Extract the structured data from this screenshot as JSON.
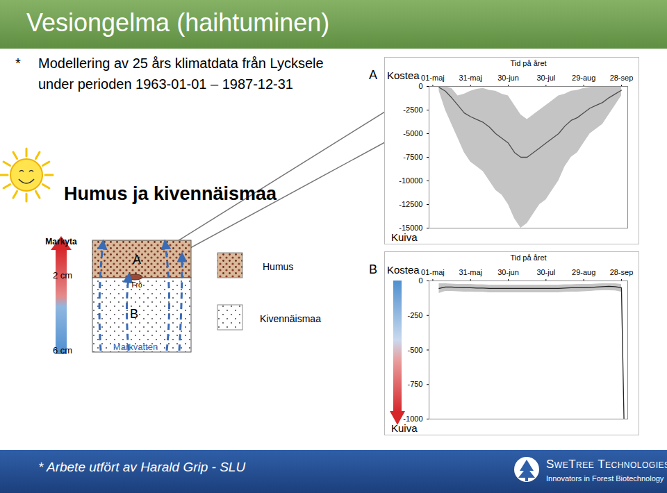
{
  "header": {
    "title": "Vesiongelma (haihtuminen)"
  },
  "bullet": {
    "marker": "*",
    "lines": [
      "Modellering av 25 års klimatdata från Lycksele",
      "under perioden 1963-01-01 – 1987-12-31"
    ]
  },
  "heading": "Humus ja kivennäismaa",
  "diagram": {
    "surface_label": "Markyta",
    "depths": [
      "2 cm",
      "6 cm"
    ],
    "layer_labels": [
      "A",
      "B"
    ],
    "seed_label": "Frö",
    "water_label": "Markvatten",
    "legend": [
      "Humus",
      "Kivennäismaa"
    ]
  },
  "chart_data": [
    {
      "type": "area",
      "panel": "A",
      "x_label": "Tid på året",
      "top_label": "Kostea",
      "bottom_label": "Kuiva",
      "x": [
        5,
        10,
        15,
        20,
        25,
        30,
        35,
        40,
        45,
        50,
        55,
        60,
        65,
        70,
        75,
        80,
        85,
        90,
        95,
        100,
        105,
        110,
        115,
        120,
        125,
        130,
        135,
        140,
        145,
        150
      ],
      "series": [
        {
          "type": "area",
          "color": "#c4c4c4",
          "low": [
            -500,
            -2500,
            -4000,
            -5500,
            -7000,
            -8000,
            -8500,
            -9000,
            -10000,
            -11000,
            -11500,
            -12500,
            -14000,
            -15000,
            -14500,
            -13500,
            -12500,
            -12000,
            -11000,
            -10000,
            -8500,
            -7500,
            -7000,
            -6000,
            -5000,
            -4500,
            -4000,
            -3000,
            -2000,
            -1000
          ],
          "high": [
            0,
            0,
            -200,
            -1000,
            -800,
            -500,
            -300,
            -200,
            -400,
            -500,
            -800,
            -1000,
            -2000,
            -3000,
            -3500,
            -3000,
            -2500,
            -2000,
            -1500,
            -1000,
            -800,
            -500,
            -400,
            -200,
            -100,
            0,
            0,
            0,
            0,
            0
          ]
        },
        {
          "type": "line",
          "color": "#4d4d4d",
          "values": [
            -100,
            -500,
            -1200,
            -2000,
            -2800,
            -3200,
            -3500,
            -3800,
            -4300,
            -5000,
            -5500,
            -6000,
            -7000,
            -7500,
            -7500,
            -7000,
            -6500,
            -6000,
            -5500,
            -5000,
            -4200,
            -3600,
            -3300,
            -2800,
            -2300,
            -2000,
            -1700,
            -1200,
            -800,
            -400
          ]
        }
      ],
      "xlim": [
        -3,
        155
      ],
      "xticks": [
        {
          "value": 0,
          "label": "01-maj"
        },
        {
          "value": 30,
          "label": "31-maj"
        },
        {
          "value": 60,
          "label": "30-jun"
        },
        {
          "value": 90,
          "label": "30-jul"
        },
        {
          "value": 120,
          "label": "29-aug"
        },
        {
          "value": 150,
          "label": "28-sep"
        }
      ],
      "ylim": [
        -15000,
        0
      ],
      "yticks": [
        0,
        -2500,
        -5000,
        -7500,
        -10000,
        -12500,
        -15000
      ],
      "grid": false
    },
    {
      "type": "area",
      "panel": "B",
      "x_label": "Tid på året",
      "top_label": "Kostea",
      "bottom_label": "Kuiva",
      "x": [
        5,
        10,
        15,
        20,
        25,
        30,
        35,
        40,
        45,
        50,
        55,
        60,
        65,
        70,
        75,
        80,
        85,
        90,
        95,
        100,
        105,
        110,
        115,
        120,
        125,
        130,
        135,
        140,
        145,
        150,
        152
      ],
      "series": [
        {
          "type": "area",
          "color": "#c4c4c4",
          "low": [
            -90,
            -75,
            -75,
            -78,
            -80,
            -80,
            -82,
            -82,
            -85,
            -85,
            -85,
            -85,
            -85,
            -85,
            -85,
            -85,
            -85,
            -85,
            -85,
            -85,
            -82,
            -80,
            -80,
            -78,
            -75,
            -72,
            -70,
            -70,
            -72,
            -80,
            -1000
          ],
          "high": [
            -20,
            -20,
            -22,
            -25,
            -25,
            -25,
            -28,
            -28,
            -30,
            -30,
            -30,
            -30,
            -30,
            -30,
            -30,
            -30,
            -30,
            -30,
            -30,
            -30,
            -28,
            -28,
            -25,
            -25,
            -25,
            -22,
            -20,
            -20,
            -20,
            -25,
            -1000
          ]
        },
        {
          "type": "line",
          "color": "#222222",
          "values": [
            -55,
            -45,
            -45,
            -48,
            -50,
            -50,
            -52,
            -52,
            -55,
            -55,
            -55,
            -55,
            -55,
            -55,
            -55,
            -55,
            -55,
            -55,
            -55,
            -55,
            -52,
            -50,
            -50,
            -50,
            -48,
            -45,
            -42,
            -40,
            -42,
            -50,
            -1000
          ]
        }
      ],
      "xlim": [
        -3,
        155
      ],
      "xticks": [
        {
          "value": 0,
          "label": "01-maj"
        },
        {
          "value": 30,
          "label": "31-maj"
        },
        {
          "value": 60,
          "label": "30-jun"
        },
        {
          "value": 90,
          "label": "30-jul"
        },
        {
          "value": 120,
          "label": "29-aug"
        },
        {
          "value": 150,
          "label": "28-sep"
        }
      ],
      "ylim": [
        -1000,
        0
      ],
      "yticks": [
        0,
        -250,
        -500,
        -750,
        -1000
      ],
      "grid": false
    }
  ],
  "footer": {
    "note": "* Arbete utfört av Harald Grip - SLU",
    "logo": "SweTree Technologies",
    "tagline": "Innovators in Forest Biotechnology"
  }
}
